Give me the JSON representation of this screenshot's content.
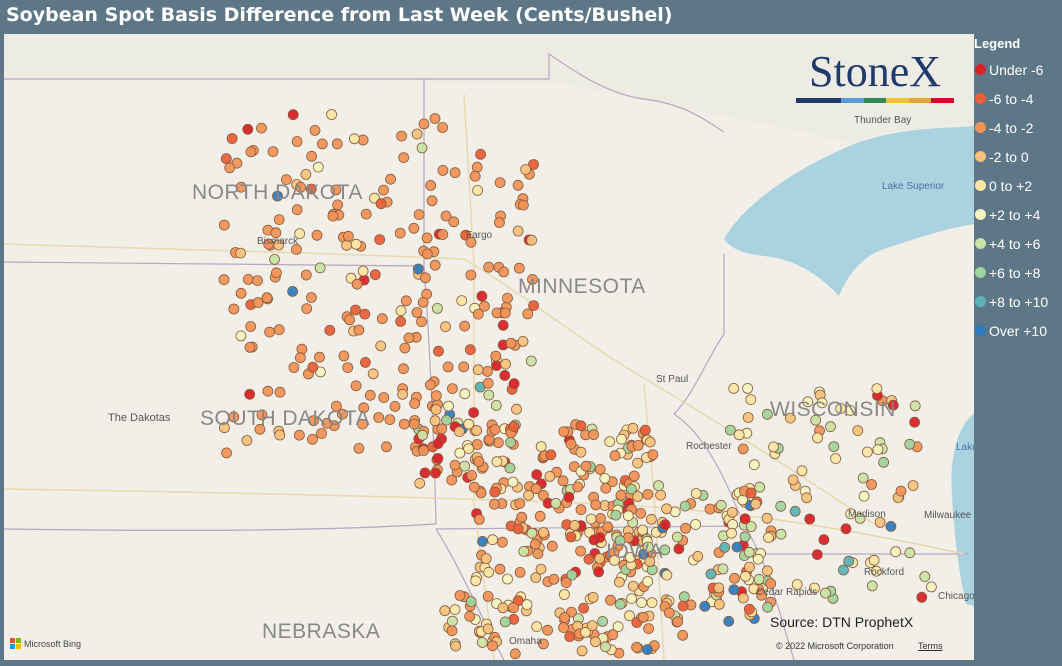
{
  "title": "Soybean Spot Basis Difference from Last Week (Cents/Bushel)",
  "legend": {
    "title": "Legend",
    "items": [
      {
        "label": "Under -6",
        "color": "#d8232a"
      },
      {
        "label": "-6 to -4",
        "color": "#e8603a"
      },
      {
        "label": "-4 to -2",
        "color": "#f1945a"
      },
      {
        "label": "-2 to 0",
        "color": "#f7c27e"
      },
      {
        "label": "0 to +2",
        "color": "#fbe6a6"
      },
      {
        "label": "+2 to +4",
        "color": "#f4f4bf"
      },
      {
        "label": "+4 to +6",
        "color": "#c9e3a6"
      },
      {
        "label": "+6 to +8",
        "color": "#9fd39f"
      },
      {
        "label": "+8 to +10",
        "color": "#5bb3b5"
      },
      {
        "label": "Over +10",
        "color": "#2f7dc0"
      }
    ]
  },
  "map": {
    "states": [
      "NORTH DAKOTA",
      "SOUTH DAKOTA",
      "MINNESOTA",
      "WISCONSIN",
      "NEBRASKA",
      "IOWA"
    ],
    "cities": [
      "Bismarck",
      "Fargo",
      "St Paul",
      "Rochester",
      "Madison",
      "Milwaukee",
      "Rockford",
      "Chicago",
      "Thunder Bay",
      "Omaha",
      "Cedar Rapids"
    ],
    "regions": [
      "The Dakotas"
    ],
    "lakes": [
      "Lake Superior",
      "Lake Michigan"
    ]
  },
  "logo": {
    "text": "StoneX",
    "bar_colors": [
      "#1f3a6b",
      "#1f3a6b",
      "#5a9bd5",
      "#2e8b57",
      "#f2c230",
      "#e8a33d",
      "#c8102e"
    ]
  },
  "source": "Source: DTN ProphetX",
  "copyright": "© 2022 Microsoft Corporation",
  "terms": "Terms",
  "bing": "Microsoft Bing",
  "bing_colors": [
    "#f25022",
    "#7fba00",
    "#00a4ef",
    "#ffb900"
  ]
}
